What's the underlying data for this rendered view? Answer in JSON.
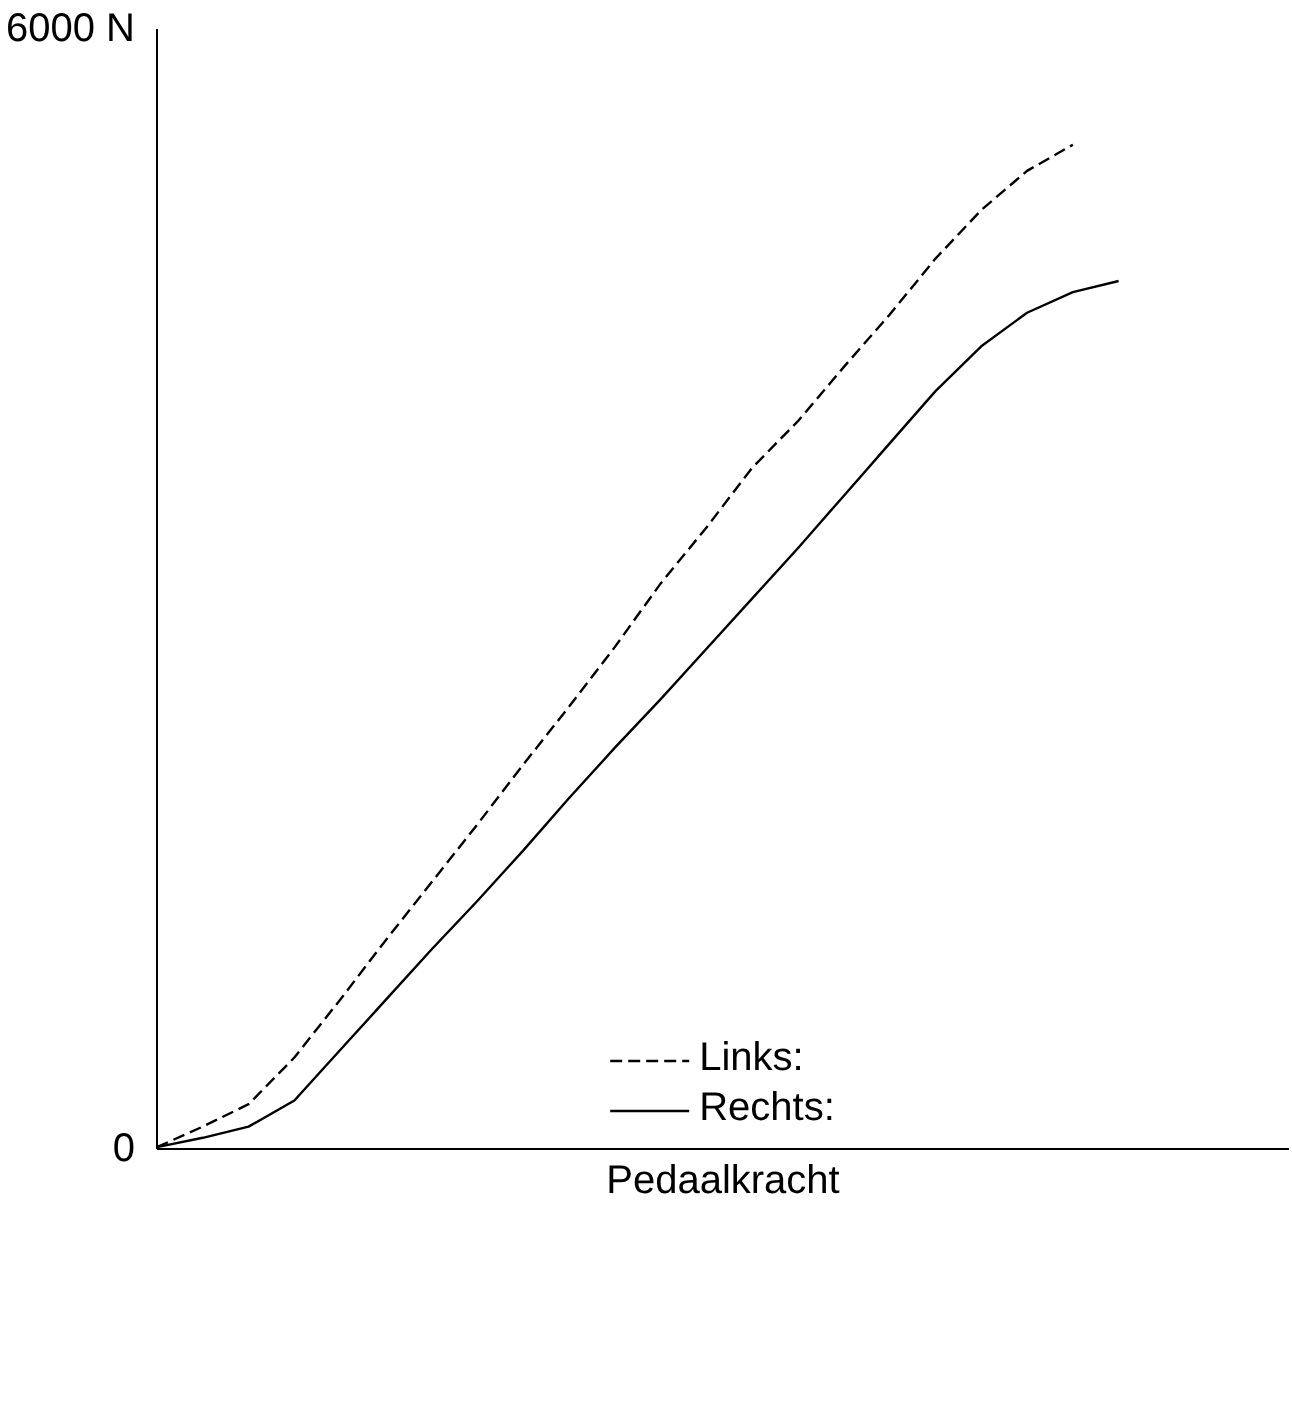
{
  "chart_data": {
    "type": "line",
    "xlabel": "Pedaalkracht",
    "categories": [
      null,
      null,
      null,
      null,
      null,
      null,
      null,
      null,
      null,
      null,
      null,
      null,
      null,
      null,
      null,
      null,
      null,
      null,
      null,
      null,
      null,
      null,
      null,
      null,
      null
    ],
    "series": [
      {
        "name": "Links:",
        "color": "#000000",
        "line_style": "dashed",
        "values": [
          10,
          120,
          240,
          490,
          800,
          1120,
          1430,
          1740,
          2060,
          2370,
          2690,
          3030,
          3330,
          3650,
          3900,
          4190,
          4470,
          4770,
          5030,
          5240,
          5380,
          null,
          null,
          null,
          null
        ]
      },
      {
        "name": "Rechts:",
        "color": "#000000",
        "line_style": "solid",
        "values": [
          10,
          60,
          120,
          260,
          530,
          800,
          1070,
          1330,
          1600,
          1880,
          2150,
          2410,
          2680,
          2950,
          3220,
          3500,
          3780,
          4060,
          4300,
          4480,
          4590,
          4650,
          null,
          null,
          null
        ]
      }
    ],
    "ylim": [
      0,
      6000
    ],
    "yticks": [
      {
        "value": 0,
        "label": "0"
      },
      {
        "value": 6000,
        "label": "6000 N"
      }
    ],
    "tick_labels": "y",
    "legend": "bottom"
  }
}
